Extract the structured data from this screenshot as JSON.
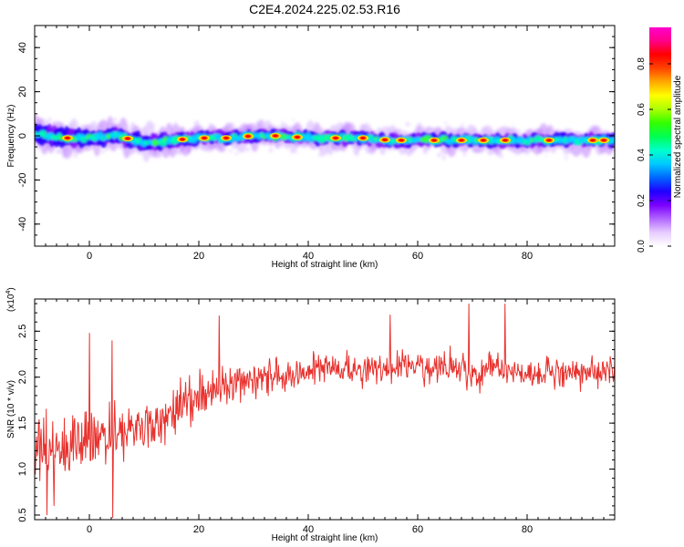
{
  "title": "C2E4.2024.225.02.53.R16",
  "chart_data": [
    {
      "type": "heatmap",
      "name": "spectrogram",
      "xlabel": "Height of straight line (km)",
      "ylabel": "Frequency (Hz)",
      "xlim": [
        -10,
        96
      ],
      "ylim": [
        -50,
        50
      ],
      "x_ticks": [
        0,
        20,
        40,
        60,
        80
      ],
      "y_ticks": [
        -40,
        -20,
        0,
        20,
        40
      ],
      "ridge": {
        "description_values": "center frequency of the amplitude band along height",
        "x": [
          -10,
          -5,
          0,
          5,
          10,
          15,
          20,
          25,
          30,
          35,
          40,
          45,
          50,
          55,
          60,
          65,
          70,
          75,
          80,
          85,
          90,
          95
        ],
        "y": [
          1,
          -1,
          -1,
          0,
          -3,
          -2,
          -1,
          -1,
          0,
          0,
          -1,
          -1,
          -1,
          -2,
          -2,
          -2,
          -2,
          -2,
          -2,
          -2,
          -2,
          -2
        ],
        "core_halfwidth_hz": [
          4,
          4,
          3,
          3,
          3,
          3,
          2,
          2,
          2,
          2,
          2,
          2,
          2,
          2,
          2,
          2,
          2,
          2,
          2,
          2,
          2,
          2
        ],
        "halo_halfwidth_hz": [
          7,
          7,
          6,
          6,
          6,
          6,
          5,
          5,
          5,
          5,
          5,
          5,
          5,
          5,
          5,
          5,
          5,
          5,
          5,
          5,
          5,
          5
        ]
      },
      "peaks_x": [
        -4,
        7,
        17,
        21,
        25,
        29,
        34,
        38,
        45,
        50,
        54,
        57,
        63,
        68,
        72,
        76,
        84,
        92,
        94
      ],
      "colorbar": {
        "label": "Normalized spectral amplitude",
        "range": [
          0,
          0.96
        ],
        "ticks": [
          0.0,
          0.2,
          0.4,
          0.6,
          0.8
        ],
        "tick_labels": [
          "0.0",
          "0.2",
          "0.4",
          "0.6",
          "0.8"
        ],
        "colors": [
          "#ffffff",
          "#e6ccff",
          "#b266ff",
          "#7a00ff",
          "#1f00ff",
          "#0066ff",
          "#00c8ff",
          "#00ffcc",
          "#00ff55",
          "#33ff00",
          "#aaff00",
          "#ffff00",
          "#ffaa00",
          "#ff4400",
          "#ff0000",
          "#ff0088",
          "#ff00cc"
        ]
      }
    },
    {
      "type": "line",
      "name": "snr",
      "xlabel": "Height of straight line (km)",
      "ylabel": "SNR (10 * v/v)",
      "scale_label": "(x10",
      "scale_exponent": "4",
      "xlim": [
        -10,
        96
      ],
      "ylim": [
        0.45,
        2.85
      ],
      "x_ticks": [
        0,
        20,
        40,
        60,
        80
      ],
      "y_ticks": [
        0.5,
        1.0,
        1.5,
        2.0,
        2.5
      ],
      "y_tick_labels": [
        "0.5",
        "1.0",
        "1.5",
        "2.0",
        "2.5"
      ],
      "color": "#e8322e",
      "trend": {
        "x": [
          -10,
          -5,
          0,
          5,
          10,
          15,
          20,
          25,
          30,
          35,
          40,
          45,
          50,
          55,
          60,
          65,
          70,
          75,
          80,
          85,
          90,
          95
        ],
        "y": [
          1.25,
          1.2,
          1.3,
          1.35,
          1.45,
          1.6,
          1.8,
          1.92,
          1.98,
          2.02,
          2.06,
          2.08,
          2.1,
          2.1,
          2.12,
          2.12,
          2.08,
          2.08,
          2.06,
          2.06,
          2.05,
          2.05
        ]
      },
      "spread": {
        "x": [
          -10,
          0,
          10,
          20,
          30,
          95
        ],
        "y": [
          0.45,
          0.4,
          0.38,
          0.3,
          0.25,
          0.22
        ]
      },
      "extremes": [
        {
          "x": -7.8,
          "y": 0.5
        },
        {
          "x": -6.5,
          "y": 0.6
        },
        {
          "x": 4.3,
          "y": 0.47
        },
        {
          "x": 4.2,
          "y": 2.4
        },
        {
          "x": 0.0,
          "y": 2.48
        },
        {
          "x": 23.7,
          "y": 2.67
        },
        {
          "x": 55.0,
          "y": 2.68
        },
        {
          "x": 69.3,
          "y": 2.8
        },
        {
          "x": 76.0,
          "y": 2.8
        }
      ],
      "sample_count": 900
    }
  ]
}
